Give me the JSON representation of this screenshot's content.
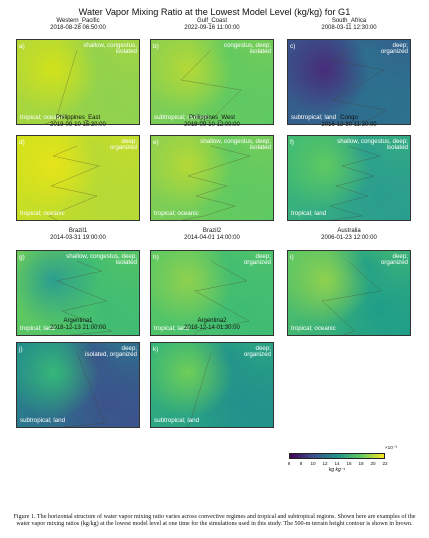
{
  "title": "Water Vapor Mixing Ratio at the Lowest Model Level (kg/kg) for G1",
  "panels": [
    {
      "name": "Western_Pacific",
      "date": "2018-08-28 06:50:00",
      "letter": "a)",
      "top_right": [
        "shallow, congestus,",
        "isolated"
      ],
      "bottom_left": "tropical; oceanic",
      "colors": [
        "#b5d936",
        "#8fd14f",
        "#d2e21b"
      ]
    },
    {
      "name": "Gulf_Coast",
      "date": "2022-09-16 11:00:00",
      "letter": "b)",
      "top_right": [
        "congestus, deep;",
        "isolated"
      ],
      "bottom_left": "subtropical; oceanic",
      "colors": [
        "#8fd14f",
        "#5ec962",
        "#b5d936"
      ]
    },
    {
      "name": "South_Africa",
      "date": "2008-03-11 12:30:00",
      "letter": "c)",
      "top_right": [
        "deep;",
        "organized"
      ],
      "bottom_left": "subtropical; land",
      "colors": [
        "#3b528b",
        "#2c728e",
        "#472c7a"
      ]
    },
    {
      "name": "Philippines_East",
      "date": "2019-09-10 15:30:00",
      "letter": "d)",
      "top_right": [
        "deep;",
        "organized"
      ],
      "bottom_left": "tropical; oceanic",
      "colors": [
        "#d2e21b",
        "#b5d936",
        "#e5e419"
      ]
    },
    {
      "name": "Philippines_West",
      "date": "2019-09-10 12:00:00",
      "letter": "e)",
      "top_right": [
        "shallow, congestus, deep;",
        "isolated"
      ],
      "bottom_left": "tropical; oceanic",
      "colors": [
        "#8fd14f",
        "#5ec962",
        "#b5d936"
      ]
    },
    {
      "name": "Congo",
      "date": "2016-12-30 11:30:00",
      "letter": "f)",
      "top_right": [
        "shallow, congestus, deep;",
        "isolated"
      ],
      "bottom_left": "tropical; land",
      "colors": [
        "#3fbc73",
        "#2a9d8f",
        "#5ec962"
      ]
    },
    {
      "name": "Brazil1",
      "date": "2014-03-31 19:00:00",
      "letter": "g)",
      "top_right": [
        "shallow, congestus, deep;",
        "isolated"
      ],
      "bottom_left": "tropical; land",
      "colors": [
        "#6ece58",
        "#3fbc73",
        "#2a9d8f"
      ]
    },
    {
      "name": "Brazil2",
      "date": "2014-04-01 14:00:00",
      "letter": "h)",
      "top_right": [
        "deep;",
        "organized"
      ],
      "bottom_left": "tropical; land",
      "colors": [
        "#5ec962",
        "#3fbc73",
        "#8fd14f"
      ]
    },
    {
      "name": "Australia",
      "date": "2006-01-23 12:00:00",
      "letter": "i)",
      "top_right": [
        "deep;",
        "organized"
      ],
      "bottom_left": "tropical; oceanic",
      "colors": [
        "#5ec962",
        "#1f9e89",
        "#8fd14f"
      ]
    },
    {
      "name": "Argentina1",
      "date": "2018-12-13 21:00:00",
      "letter": "j)",
      "top_right": [
        "deep;",
        "isolated, organized"
      ],
      "bottom_left": "subtropical; land",
      "colors": [
        "#21918c",
        "#3b528b",
        "#35b779"
      ]
    },
    {
      "name": "Argentina2",
      "date": "2018-12-14 01:30:00",
      "letter": "k)",
      "top_right": [
        "deep;",
        "organized"
      ],
      "bottom_left": "subtropical; land",
      "colors": [
        "#35b779",
        "#21918c",
        "#6ece58"
      ]
    }
  ],
  "colorbar": {
    "ticks": [
      "6",
      "8",
      "10",
      "12",
      "14",
      "16",
      "18",
      "20",
      "22"
    ],
    "tick_fractions": [
      0.0,
      0.125,
      0.25,
      0.375,
      0.5,
      0.625,
      0.75,
      0.875,
      1.0
    ],
    "exponent": "×10⁻³",
    "unit": "kg kg⁻¹",
    "colormap": "viridis"
  },
  "caption": "Figure 1. The horizontal structure of water vapor mixing ratio varies across convective regimes and tropical and subtropical regions. Shown here are examples of the water vapor mixing ratios (kg/kg) at the lowest model level at one time for the simulations used in this study. The 500-m terrain height contour is shown in brown."
}
